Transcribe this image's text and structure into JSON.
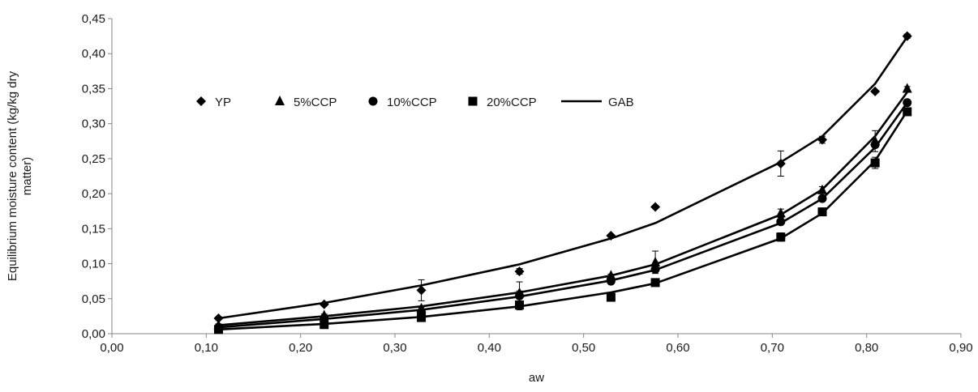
{
  "chart_data": {
    "type": "scatter",
    "xlabel": "aw",
    "ylabel": "Equilibrium moisture content (kg/kg dry matter)",
    "ylabel_lines": [
      "Equilibrium moisture content (kg/kg dry",
      "matter)"
    ],
    "xlim": [
      0,
      0.9
    ],
    "ylim": [
      0,
      0.45
    ],
    "x_ticks": [
      0,
      0.1,
      0.2,
      0.3,
      0.4,
      0.5,
      0.6,
      0.7,
      0.8,
      0.9
    ],
    "x_tick_labels": [
      "0,00",
      "0,10",
      "0,20",
      "0,30",
      "0,40",
      "0,50",
      "0,60",
      "0,70",
      "0,80",
      "0,90"
    ],
    "y_ticks": [
      0,
      0.05,
      0.1,
      0.15,
      0.2,
      0.25,
      0.3,
      0.35,
      0.4,
      0.45
    ],
    "y_tick_labels": [
      "0,00",
      "0,05",
      "0,10",
      "0,15",
      "0,20",
      "0,25",
      "0,30",
      "0,35",
      "0,40",
      "0,45"
    ],
    "grid": false,
    "legend_position": "top-left-inside",
    "x": [
      0.113,
      0.225,
      0.328,
      0.432,
      0.529,
      0.576,
      0.709,
      0.753,
      0.809,
      0.843
    ],
    "series": [
      {
        "name": "YP",
        "marker": "diamond",
        "values": [
          0.022,
          0.042,
          0.062,
          0.089,
          0.14,
          0.181,
          0.243,
          0.277,
          0.346,
          0.425
        ],
        "errors": [
          0.002,
          0.002,
          0.015,
          0.004,
          0.002,
          0.002,
          0.018,
          0.005,
          0.002,
          0.003
        ]
      },
      {
        "name": "5%CCP",
        "marker": "triangle",
        "values": [
          0.012,
          0.026,
          0.036,
          0.058,
          0.083,
          0.102,
          0.172,
          0.205,
          0.275,
          0.35
        ],
        "errors": [
          0.002,
          0.002,
          0.002,
          0.003,
          0.002,
          0.016,
          0.006,
          0.005,
          0.015,
          0.003
        ]
      },
      {
        "name": "10%CCP",
        "marker": "circle",
        "values": [
          0.009,
          0.022,
          0.031,
          0.054,
          0.075,
          0.092,
          0.16,
          0.193,
          0.27,
          0.33
        ],
        "errors": [
          0.002,
          0.002,
          0.002,
          0.02,
          0.002,
          0.002,
          0.004,
          0.004,
          0.004,
          0.002
        ]
      },
      {
        "name": "20%CCP",
        "marker": "square",
        "values": [
          0.006,
          0.013,
          0.023,
          0.041,
          0.052,
          0.073,
          0.138,
          0.174,
          0.244,
          0.317
        ],
        "errors": [
          0.002,
          0.002,
          0.002,
          0.003,
          0.002,
          0.002,
          0.006,
          0.002,
          0.008,
          0.002
        ]
      }
    ],
    "model_curves": {
      "name": "GAB",
      "lines": [
        [
          0.022,
          0.044,
          0.069,
          0.099,
          0.136,
          0.158,
          0.245,
          0.282,
          0.357,
          0.424
        ],
        [
          0.012,
          0.025,
          0.039,
          0.059,
          0.083,
          0.099,
          0.17,
          0.206,
          0.282,
          0.345
        ],
        [
          0.009,
          0.021,
          0.034,
          0.053,
          0.076,
          0.091,
          0.158,
          0.193,
          0.266,
          0.33
        ],
        [
          0.006,
          0.014,
          0.024,
          0.039,
          0.059,
          0.072,
          0.136,
          0.172,
          0.247,
          0.318
        ]
      ]
    },
    "colors": {
      "mark": "#000000",
      "axis": "#868686"
    }
  }
}
